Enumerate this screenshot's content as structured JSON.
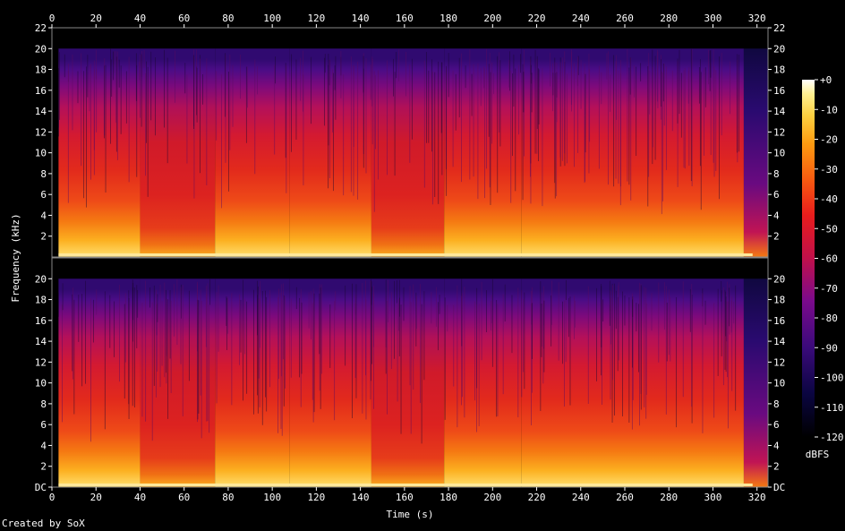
{
  "chart_data": {
    "type": "heatmap",
    "title": "",
    "xlabel": "Time (s)",
    "ylabel": "Frequency (kHz)",
    "xlim": [
      0,
      325
    ],
    "ylim_khz": [
      0,
      22
    ],
    "x_ticks": [
      0,
      20,
      40,
      60,
      80,
      100,
      120,
      140,
      160,
      180,
      200,
      220,
      240,
      260,
      280,
      300,
      320
    ],
    "channels": [
      {
        "name": "",
        "y_tick_labels": [
          "22",
          "20",
          "18",
          "16",
          "14",
          "12",
          "10",
          "8",
          "6",
          "4",
          "2"
        ],
        "y_ticks": [
          22,
          20,
          18,
          16,
          14,
          12,
          10,
          8,
          6,
          4,
          2
        ]
      },
      {
        "name": "",
        "y_tick_labels": [
          "20",
          "18",
          "16",
          "14",
          "12",
          "10",
          "8",
          "6",
          "4",
          "2",
          "DC"
        ],
        "y_ticks": [
          20,
          18,
          16,
          14,
          12,
          10,
          8,
          6,
          4,
          2,
          0
        ]
      }
    ],
    "content_cutoff_khz": 20,
    "segments": [
      {
        "start": 0,
        "end": 3,
        "level": "silent"
      },
      {
        "start": 3,
        "end": 40,
        "level": "loud"
      },
      {
        "start": 40,
        "end": 74,
        "level": "quiet"
      },
      {
        "start": 74,
        "end": 108,
        "level": "loud"
      },
      {
        "start": 108,
        "end": 145,
        "level": "loud"
      },
      {
        "start": 145,
        "end": 178,
        "level": "quiet"
      },
      {
        "start": 178,
        "end": 213,
        "level": "loud"
      },
      {
        "start": 213,
        "end": 314,
        "level": "loud"
      },
      {
        "start": 314,
        "end": 325,
        "level": "fade"
      }
    ],
    "colorbar": {
      "label": "dBFS",
      "range": [
        -120,
        0
      ],
      "tick_labels": [
        "+0",
        "-10",
        "-20",
        "-30",
        "-40",
        "-50",
        "-60",
        "-70",
        "-80",
        "-90",
        "-100",
        "-110",
        "-120"
      ],
      "tick_values": [
        0,
        -10,
        -20,
        -30,
        -40,
        -50,
        -60,
        -70,
        -80,
        -90,
        -100,
        -110,
        -120
      ]
    }
  },
  "footer": "Created by SoX"
}
